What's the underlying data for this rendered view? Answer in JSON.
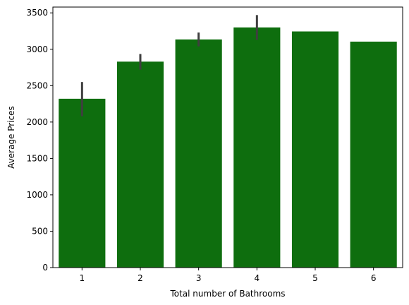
{
  "chart_data": {
    "type": "bar",
    "title": "",
    "xlabel": "Total number of Bathrooms",
    "ylabel": "Average Prices",
    "categories": [
      "1",
      "2",
      "3",
      "4",
      "5",
      "6"
    ],
    "values": [
      2320,
      2830,
      3135,
      3300,
      3245,
      3105
    ],
    "error_bars": [
      [
        2080,
        2550
      ],
      [
        2720,
        2935
      ],
      [
        3040,
        3230
      ],
      [
        3130,
        3470
      ],
      null,
      null
    ],
    "ylim": [
      0,
      3580
    ],
    "yticks": [
      0,
      500,
      1000,
      1500,
      2000,
      2500,
      3000,
      3500
    ],
    "grid": false,
    "bar_color": "#0e6e0e",
    "error_color": "#3f3f3f"
  }
}
